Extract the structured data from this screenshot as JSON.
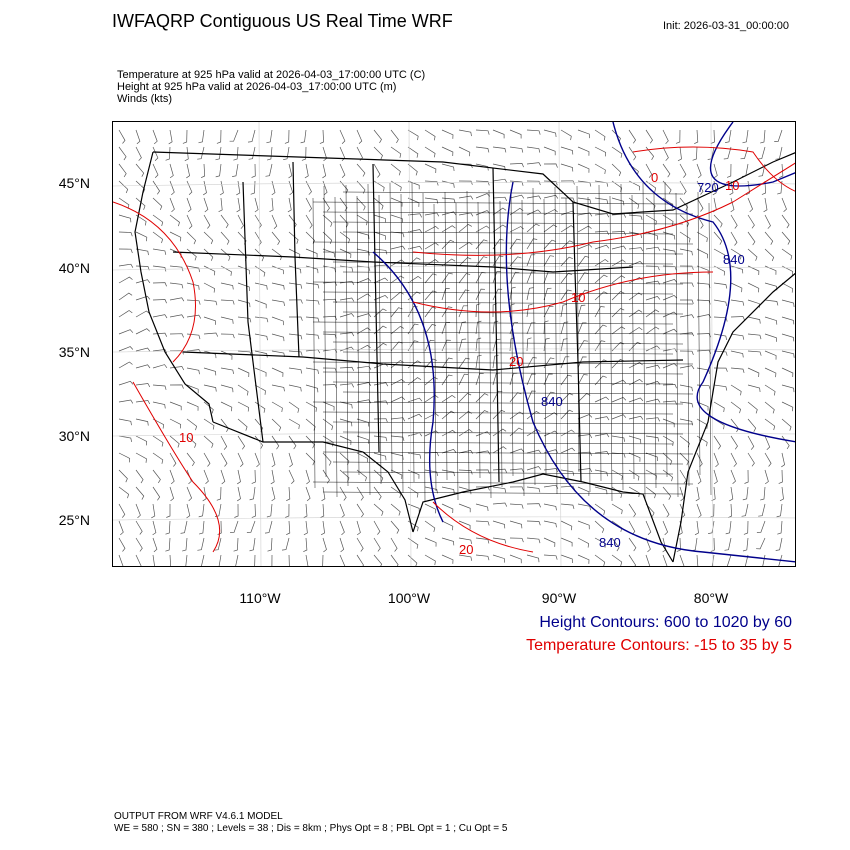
{
  "header": {
    "title": "IWFAQRP Contiguous US Real Time WRF",
    "init": "Init: 2026-03-31_00:00:00"
  },
  "fields": {
    "temperature": "Temperature at 925 hPa valid at 2026-04-03_17:00:00 UTC   (C)",
    "height": "Height at 925 hPa valid at 2026-04-03_17:00:00 UTC   (m)",
    "winds": "Winds   (kts)"
  },
  "axes": {
    "lat_labels": [
      "45°N",
      "40°N",
      "35°N",
      "30°N",
      "25°N"
    ],
    "lon_labels": [
      "110°W",
      "100°W",
      "90°W",
      "80°W"
    ]
  },
  "contour_labels": {
    "height": [
      "720",
      "840",
      "840",
      "840"
    ],
    "temperature": [
      "0",
      "10",
      "10",
      "20",
      "10",
      "20"
    ]
  },
  "legend": {
    "height": "Height Contours: 600 to 1020 by 60",
    "temperature": "Temperature Contours: -15 to 35 by 5"
  },
  "colors": {
    "height_contour": "#00008b",
    "temperature_contour": "#e00000",
    "boundaries": "#000000"
  },
  "footer": {
    "line1": "OUTPUT FROM WRF V4.6.1 MODEL",
    "line2": "WE = 580 ; SN = 380 ; Levels = 38 ; Dis = 8km ; Phys Opt = 8 ; PBL Opt = 1 ; Cu Opt = 5"
  }
}
